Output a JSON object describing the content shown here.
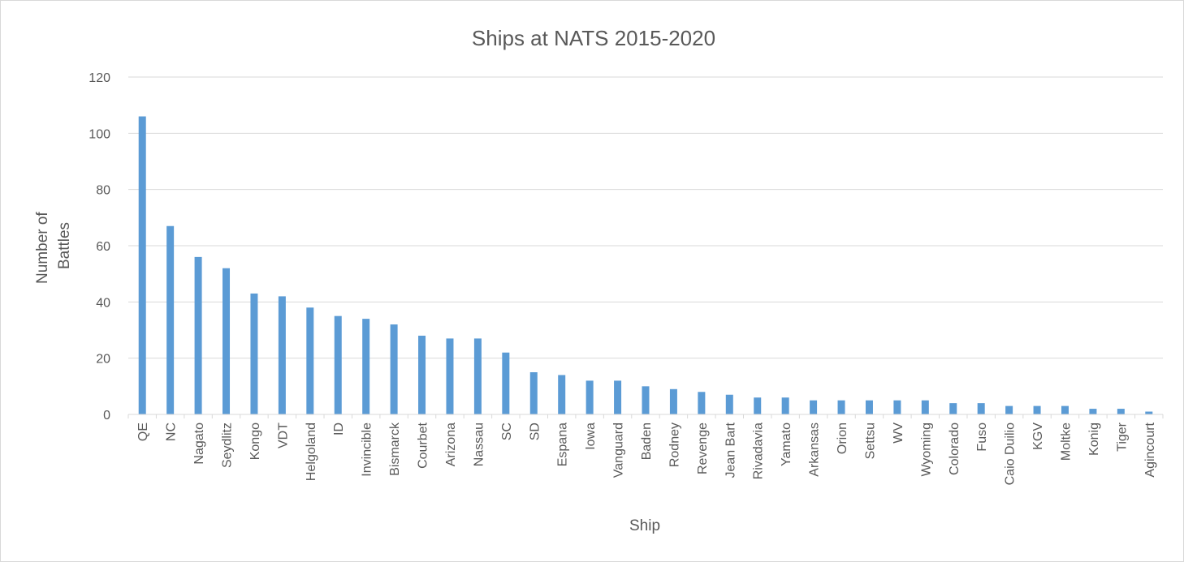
{
  "chart_data": {
    "type": "bar",
    "title": "Ships at NATS 2015-2020",
    "xlabel": "Ship",
    "ylabel": "Number of Battles",
    "ylabel_lines": [
      "Number of",
      "Battles"
    ],
    "ylim": [
      0,
      120
    ],
    "yticks": [
      "0",
      "20",
      "40",
      "60",
      "80",
      "100",
      "120"
    ],
    "grid": true,
    "legend": "none",
    "categories": [
      "QE",
      "NC",
      "Nagato",
      "Seydlitz",
      "Kongo",
      "VDT",
      "Helgoland",
      "ID",
      "Invincible",
      "Bismarck",
      "Courbet",
      "Arizona",
      "Nassau",
      "SC",
      "SD",
      "Espana",
      "Iowa",
      "Vanguard",
      "Baden",
      "Rodney",
      "Revenge",
      "Jean Bart",
      "Rivadavia",
      "Yamato",
      "Arkansas",
      "Orion",
      "Settsu",
      "WV",
      "Wyoming",
      "Colorado",
      "Fuso",
      "Caio Duilio",
      "KGV",
      "Moltke",
      "Konig",
      "Tiger",
      "Agincourt"
    ],
    "values": [
      106,
      67,
      56,
      52,
      43,
      42,
      38,
      35,
      34,
      32,
      28,
      27,
      27,
      22,
      15,
      14,
      12,
      12,
      10,
      9,
      8,
      7,
      6,
      6,
      5,
      5,
      5,
      5,
      5,
      4,
      4,
      3,
      3,
      3,
      2,
      2,
      1
    ],
    "colors": {
      "bar": "#5b9bd5",
      "grid": "#d9d9d9",
      "axis": "#d9d9d9",
      "text": "#595959"
    }
  }
}
